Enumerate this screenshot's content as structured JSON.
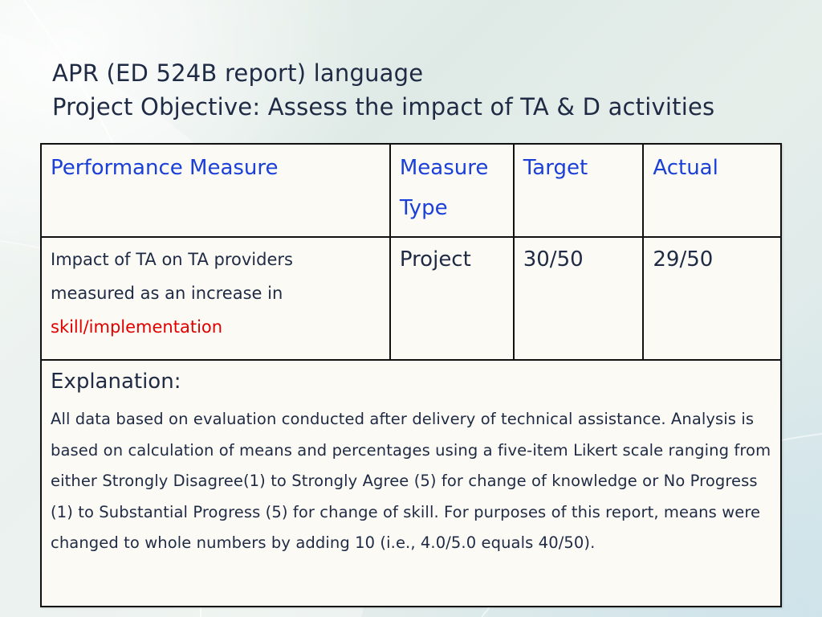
{
  "title": {
    "line1": "APR (ED 524B report) language",
    "line2": "Project Objective: Assess the impact of TA & D activities"
  },
  "table": {
    "headers": {
      "performance_measure": "Performance Measure",
      "measure_type": "Measure Type",
      "target": "Target",
      "actual": "Actual"
    },
    "row": {
      "measure_part1": "Impact of TA on TA providers measured as an increase in",
      "measure_highlight": "skill/implementation",
      "measure_type": "Project",
      "target": "30/50",
      "actual": "29/50"
    },
    "explanation": {
      "title": "Explanation:",
      "body": "All data based on evaluation conducted after delivery of technical assistance. Analysis is based on calculation of means and percentages using a five-item Likert scale ranging from either Strongly Disagree(1) to Strongly Agree (5)  for change of knowledge or No Progress (1) to Substantial Progress (5) for change of skill.  For purposes of this report, means were changed to whole numbers by adding 10 (i.e., 4.0/5.0 equals 40/50)."
    }
  },
  "colors": {
    "header_text": "#1a40d8",
    "body_text": "#1f2a44",
    "highlight": "#e00000"
  }
}
